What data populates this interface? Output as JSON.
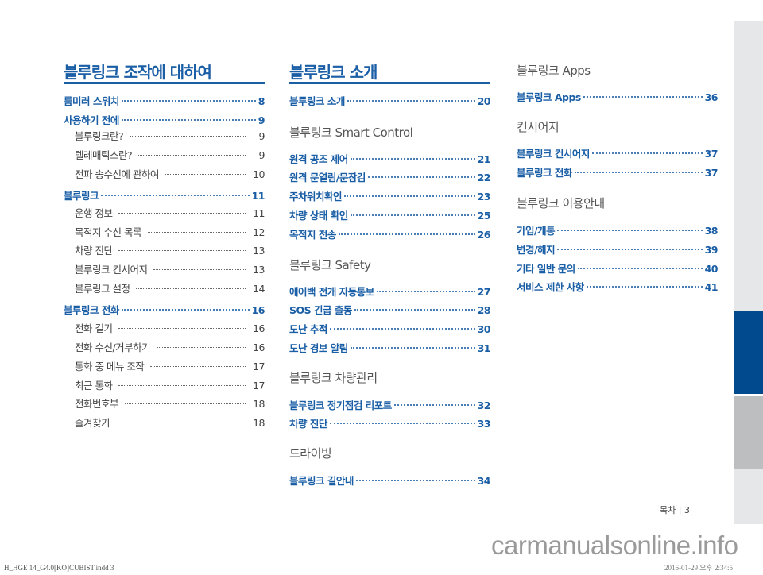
{
  "columns": [
    {
      "title": "블루링크 조작에 대하여",
      "sections": [
        {
          "heading": "",
          "items": [
            {
              "label": "룸미러 스위치",
              "page": "8",
              "level": "main"
            },
            {
              "label": "사용하기 전에",
              "page": "9",
              "level": "main"
            },
            {
              "label": "블루링크란?",
              "page": "9",
              "level": "sub"
            },
            {
              "label": "텔레매틱스란?",
              "page": "9",
              "level": "sub"
            },
            {
              "label": "전파 송수신에 관하여",
              "page": "10",
              "level": "sub"
            },
            {
              "label": "블루링크",
              "page": "11",
              "level": "main"
            },
            {
              "label": "운행 정보",
              "page": "11",
              "level": "sub"
            },
            {
              "label": "목적지 수신 목록",
              "page": "12",
              "level": "sub"
            },
            {
              "label": "차량 진단",
              "page": "13",
              "level": "sub"
            },
            {
              "label": "블루링크 컨시어지",
              "page": "13",
              "level": "sub"
            },
            {
              "label": "블루링크 설정",
              "page": "14",
              "level": "sub"
            },
            {
              "label": "블루링크 전화",
              "page": "16",
              "level": "main"
            },
            {
              "label": "전화 걸기",
              "page": "16",
              "level": "sub"
            },
            {
              "label": "전화 수신/거부하기",
              "page": "16",
              "level": "sub"
            },
            {
              "label": "통화 중 메뉴 조작",
              "page": "17",
              "level": "sub"
            },
            {
              "label": "최근 통화",
              "page": "17",
              "level": "sub"
            },
            {
              "label": "전화번호부",
              "page": "18",
              "level": "sub"
            },
            {
              "label": "즐겨찾기",
              "page": "18",
              "level": "sub"
            }
          ]
        }
      ]
    },
    {
      "title": "블루링크 소개",
      "sections": [
        {
          "heading": "",
          "items": [
            {
              "label": "블루링크 소개",
              "page": "20",
              "level": "main"
            }
          ]
        },
        {
          "heading": "블루링크 Smart Control",
          "items": [
            {
              "label": "원격 공조 제어",
              "page": "21",
              "level": "main"
            },
            {
              "label": "원격 문열림/문잠김",
              "page": "22",
              "level": "main"
            },
            {
              "label": "주차위치확인",
              "page": "23",
              "level": "main"
            },
            {
              "label": "차량 상태 확인",
              "page": "25",
              "level": "main"
            },
            {
              "label": "목적지 전송",
              "page": "26",
              "level": "main"
            }
          ]
        },
        {
          "heading": "블루링크 Safety",
          "items": [
            {
              "label": "에어백 전개 자동통보",
              "page": "27",
              "level": "main"
            },
            {
              "label": "SOS 긴급 출동",
              "page": "28",
              "level": "main"
            },
            {
              "label": "도난 추적",
              "page": "30",
              "level": "main"
            },
            {
              "label": "도난 경보 알림",
              "page": "31",
              "level": "main"
            }
          ]
        },
        {
          "heading": "블루링크 차량관리",
          "items": [
            {
              "label": "블루링크 정기점검 리포트",
              "page": "32",
              "level": "main"
            },
            {
              "label": "차량 진단",
              "page": "33",
              "level": "main"
            }
          ]
        },
        {
          "heading": "드라이빙",
          "items": [
            {
              "label": "블루링크 길안내",
              "page": "34",
              "level": "main"
            }
          ]
        }
      ]
    },
    {
      "title": "",
      "sections": [
        {
          "heading": "블루링크 Apps",
          "items": [
            {
              "label": "블루링크 Apps",
              "page": "36",
              "level": "main"
            }
          ]
        },
        {
          "heading": "컨시어지",
          "items": [
            {
              "label": "블루링크 컨시어지",
              "page": "37",
              "level": "main"
            },
            {
              "label": "블루링크 전화",
              "page": "37",
              "level": "main"
            }
          ]
        },
        {
          "heading": "블루링크 이용안내",
          "items": [
            {
              "label": "가입/개통",
              "page": "38",
              "level": "main"
            },
            {
              "label": "변경/해지",
              "page": "39",
              "level": "main"
            },
            {
              "label": "기타 일반 문의",
              "page": "40",
              "level": "main"
            },
            {
              "label": "서비스 제한 사항",
              "page": "41",
              "level": "main"
            }
          ]
        }
      ]
    }
  ],
  "footer": {
    "page_label": "목차 | 3",
    "slug": "H_HGE 14_G4.0[KO]CUBIST.indd   3",
    "date": "2016-01-29   오후 2:34:5",
    "watermark": "carmanualsonline.info"
  },
  "colors": {
    "accent": "#1a5ea6",
    "tab_active": "#004a8d",
    "tab_light": "#e6e7e8",
    "tab_mid": "#bcbec0"
  }
}
